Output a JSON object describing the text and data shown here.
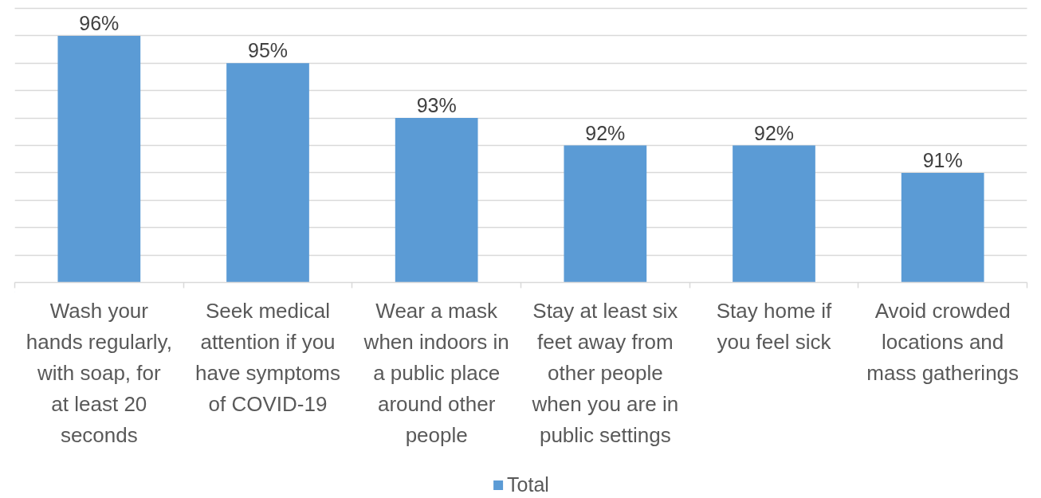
{
  "chart_data": {
    "type": "bar",
    "categories": [
      "Wash your\nhands regularly,\nwith soap, for\nat least 20\nseconds",
      "Seek medical\nattention if you\nhave symptoms\nof COVID-19",
      "Wear a mask\nwhen indoors in\na public place\naround other\npeople",
      "Stay at least six\nfeet away from\nother people\nwhen you are in\npublic settings",
      "Stay home if\nyou feel sick",
      "Avoid crowded\nlocations and\nmass gatherings"
    ],
    "series": [
      {
        "name": "Total",
        "color": "#5b9bd5",
        "values": [
          96,
          95,
          93,
          92,
          92,
          91
        ],
        "value_labels": [
          "96%",
          "95%",
          "93%",
          "92%",
          "92%",
          "91%"
        ]
      }
    ],
    "ylim": [
      87,
      97
    ],
    "yticks": [
      {
        "value": 87,
        "label": null
      },
      {
        "value": 88,
        "label": null
      },
      {
        "value": 89,
        "label": null
      },
      {
        "value": 90,
        "label": null
      },
      {
        "value": 91,
        "label": null
      },
      {
        "value": 92,
        "label": null
      },
      {
        "value": 93,
        "label": null
      },
      {
        "value": 94,
        "label": null
      },
      {
        "value": 95,
        "label": null
      },
      {
        "value": 96,
        "label": null
      },
      {
        "value": 97,
        "label": null
      }
    ],
    "grid": "y",
    "legend": "bottom",
    "tick_labels": "x"
  }
}
